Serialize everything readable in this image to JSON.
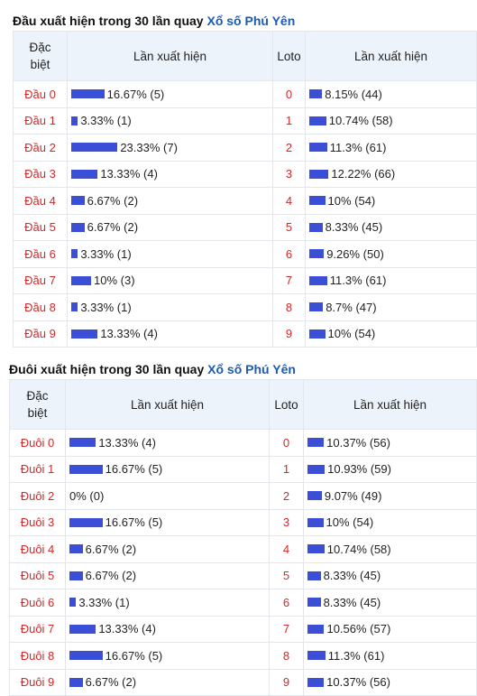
{
  "colors": {
    "bar": "#3b4fd6",
    "label": "#d02929",
    "link": "#1a5bb8",
    "header_bg": "#edf3fb"
  },
  "dau": {
    "title": "Đầu xuất hiện trong 30 lần quay",
    "link": "Xổ số Phú Yên",
    "headers": {
      "col1": "Đặc biệt",
      "col2": "Lần xuất hiện",
      "col3": "Loto",
      "col4": "Lần xuất hiện"
    },
    "rows": [
      {
        "label": "Đầu 0",
        "db": "16.67% (5)",
        "db_pct": 16.67,
        "loto": "0",
        "lt": "8.15% (44)",
        "lt_pct": 8.15
      },
      {
        "label": "Đầu 1",
        "db": "3.33% (1)",
        "db_pct": 3.33,
        "loto": "1",
        "lt": "10.74% (58)",
        "lt_pct": 10.74
      },
      {
        "label": "Đầu 2",
        "db": "23.33% (7)",
        "db_pct": 23.33,
        "loto": "2",
        "lt": "11.3% (61)",
        "lt_pct": 11.3
      },
      {
        "label": "Đầu 3",
        "db": "13.33% (4)",
        "db_pct": 13.33,
        "loto": "3",
        "lt": "12.22% (66)",
        "lt_pct": 12.22
      },
      {
        "label": "Đầu 4",
        "db": "6.67% (2)",
        "db_pct": 6.67,
        "loto": "4",
        "lt": "10% (54)",
        "lt_pct": 10
      },
      {
        "label": "Đầu 5",
        "db": "6.67% (2)",
        "db_pct": 6.67,
        "loto": "5",
        "lt": "8.33% (45)",
        "lt_pct": 8.33
      },
      {
        "label": "Đầu 6",
        "db": "3.33% (1)",
        "db_pct": 3.33,
        "loto": "6",
        "lt": "9.26% (50)",
        "lt_pct": 9.26
      },
      {
        "label": "Đầu 7",
        "db": "10% (3)",
        "db_pct": 10,
        "loto": "7",
        "lt": "11.3% (61)",
        "lt_pct": 11.3
      },
      {
        "label": "Đầu 8",
        "db": "3.33% (1)",
        "db_pct": 3.33,
        "loto": "8",
        "lt": "8.7% (47)",
        "lt_pct": 8.7
      },
      {
        "label": "Đầu 9",
        "db": "13.33% (4)",
        "db_pct": 13.33,
        "loto": "9",
        "lt": "10% (54)",
        "lt_pct": 10
      }
    ]
  },
  "duoi": {
    "title": "Đuôi xuất hiện trong 30 lần quay",
    "link": "Xổ số Phú Yên",
    "headers": {
      "col1": "Đặc biệt",
      "col2": "Lần xuất hiện",
      "col3": "Loto",
      "col4": "Lần xuất hiện"
    },
    "rows": [
      {
        "label": "Đuôi 0",
        "db": "13.33% (4)",
        "db_pct": 13.33,
        "loto": "0",
        "lt": "10.37% (56)",
        "lt_pct": 10.37
      },
      {
        "label": "Đuôi 1",
        "db": "16.67% (5)",
        "db_pct": 16.67,
        "loto": "1",
        "lt": "10.93% (59)",
        "lt_pct": 10.93
      },
      {
        "label": "Đuôi 2",
        "db": "0% (0)",
        "db_pct": 0,
        "loto": "2",
        "lt": "9.07% (49)",
        "lt_pct": 9.07
      },
      {
        "label": "Đuôi 3",
        "db": "16.67% (5)",
        "db_pct": 16.67,
        "loto": "3",
        "lt": "10% (54)",
        "lt_pct": 10
      },
      {
        "label": "Đuôi 4",
        "db": "6.67% (2)",
        "db_pct": 6.67,
        "loto": "4",
        "lt": "10.74% (58)",
        "lt_pct": 10.74
      },
      {
        "label": "Đuôi 5",
        "db": "6.67% (2)",
        "db_pct": 6.67,
        "loto": "5",
        "lt": "8.33% (45)",
        "lt_pct": 8.33
      },
      {
        "label": "Đuôi 6",
        "db": "3.33% (1)",
        "db_pct": 3.33,
        "loto": "6",
        "lt": "8.33% (45)",
        "lt_pct": 8.33
      },
      {
        "label": "Đuôi 7",
        "db": "13.33% (4)",
        "db_pct": 13.33,
        "loto": "7",
        "lt": "10.56% (57)",
        "lt_pct": 10.56
      },
      {
        "label": "Đuôi 8",
        "db": "16.67% (5)",
        "db_pct": 16.67,
        "loto": "8",
        "lt": "11.3% (61)",
        "lt_pct": 11.3
      },
      {
        "label": "Đuôi 9",
        "db": "6.67% (2)",
        "db_pct": 6.67,
        "loto": "9",
        "lt": "10.37% (56)",
        "lt_pct": 10.37
      }
    ]
  }
}
